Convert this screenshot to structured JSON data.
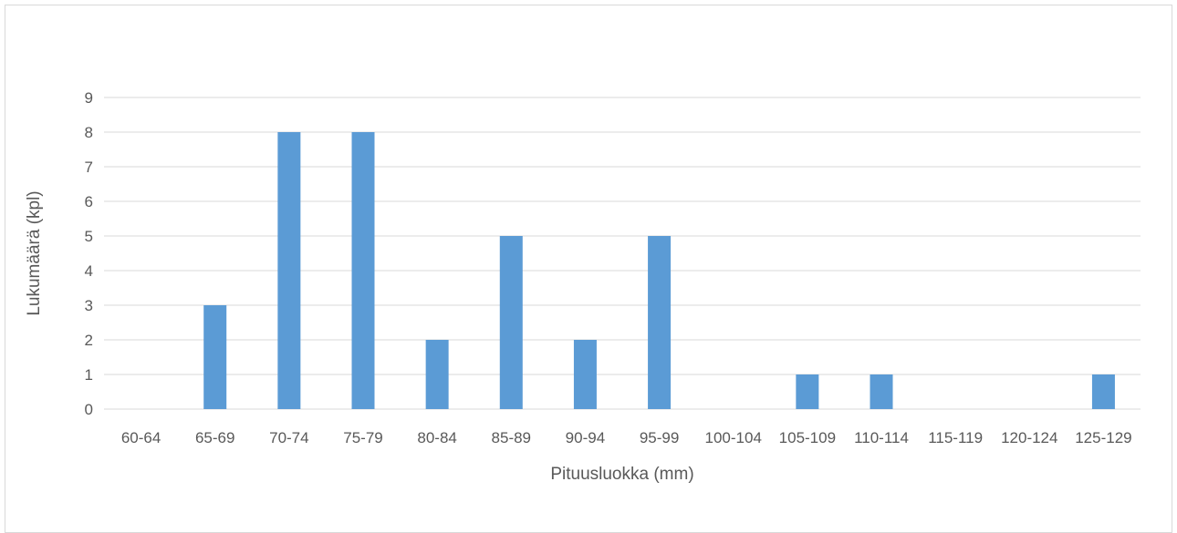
{
  "chart_data": {
    "type": "bar",
    "title": "",
    "xlabel": "Pituusluokka (mm)",
    "ylabel": "Lukumäärä (kpl)",
    "categories": [
      "60-64",
      "65-69",
      "70-74",
      "75-79",
      "80-84",
      "85-89",
      "90-94",
      "95-99",
      "100-104",
      "105-109",
      "110-114",
      "115-119",
      "120-124",
      "125-129"
    ],
    "values": [
      0,
      3,
      8,
      8,
      2,
      5,
      2,
      5,
      0,
      1,
      1,
      0,
      0,
      1
    ],
    "ylim": [
      0,
      9
    ],
    "yticks": [
      0,
      1,
      2,
      3,
      4,
      5,
      6,
      7,
      8,
      9
    ],
    "grid": true,
    "legend": "none",
    "colors": {
      "bar": "#5b9bd5",
      "grid": "#d9d9d9",
      "text": "#595959"
    }
  }
}
